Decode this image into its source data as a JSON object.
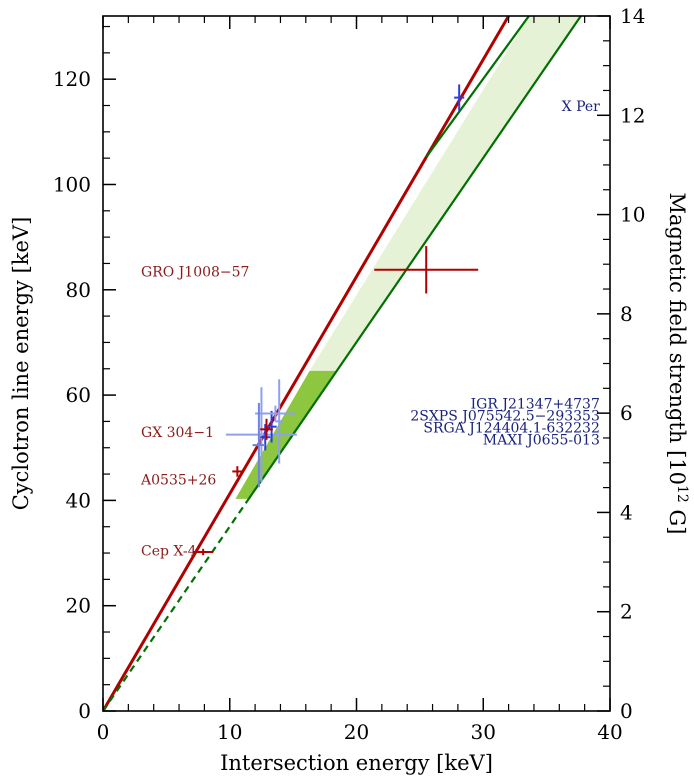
{
  "chart_data": {
    "type": "scatter",
    "xlabel": "Intersection energy [keV]",
    "ylabel": "Cyclotron line energy [keV]",
    "y2label_main": "Magnetic field strength [10",
    "y2label_sup": "12",
    "y2label_tail": " G]",
    "xlim": [
      0,
      40
    ],
    "ylim": [
      0,
      132
    ],
    "y2lim": [
      0,
      14
    ],
    "xticks": [
      "0",
      "10",
      "20",
      "30",
      "40"
    ],
    "yticks": [
      "0",
      "20",
      "40",
      "60",
      "80",
      "100",
      "120"
    ],
    "y2ticks": [
      "0",
      "2",
      "4",
      "6",
      "8",
      "10",
      "12",
      "14"
    ],
    "lines": [
      {
        "name": "",
        "color": "#b00000",
        "style": "solid",
        "points": [
          [
            0,
            0
          ],
          [
            32,
            132
          ]
        ]
      },
      {
        "name": "",
        "color": "#007000",
        "style": "solid",
        "points": [
          [
            11.5,
            40.3
          ],
          [
            37.7,
            132
          ]
        ]
      },
      {
        "name": "",
        "color": "#007000",
        "style": "solid",
        "points": [
          [
            25.5,
            105.2
          ],
          [
            33.6,
            132
          ]
        ]
      },
      {
        "name": "",
        "color": "#007000",
        "style": "dashed",
        "points": [
          [
            0,
            0
          ],
          [
            11.5,
            40.3
          ]
        ]
      }
    ],
    "regions": [
      {
        "color": "#e6f2d6",
        "polygon": [
          [
            16.3,
            64.6
          ],
          [
            18.5,
            64.6
          ],
          [
            37.7,
            132
          ],
          [
            33.6,
            132
          ]
        ]
      },
      {
        "color": "#8dc63f",
        "polygon": [
          [
            10.45,
            40.3
          ],
          [
            11.5,
            40.3
          ],
          [
            18.5,
            64.6
          ],
          [
            16.3,
            64.6
          ]
        ]
      }
    ],
    "points": [
      {
        "x": 28.1,
        "y": 116.5,
        "xerr": 0.4,
        "yerr": 2.5,
        "color": "#2a3fe0"
      },
      {
        "x": 25.5,
        "y": 83.8,
        "xerr": 4.1,
        "yerr": 4.5,
        "color": "#b00000"
      },
      {
        "x": 12.5,
        "y": 52.5,
        "xerr": 2.8,
        "yerr": 9.0,
        "color": "#8fa0f0"
      },
      {
        "x": 13.3,
        "y": 54.0,
        "xerr": 0.4,
        "yerr": 3.0,
        "color": "#2a3fe0"
      },
      {
        "x": 13.6,
        "y": 56.5,
        "xerr": 1.6,
        "yerr": 1.5,
        "color": "#8fa0f0"
      },
      {
        "x": 13.9,
        "y": 55.0,
        "xerr": 0.3,
        "yerr": 8.0,
        "color": "#8fa0f0"
      },
      {
        "x": 12.8,
        "y": 52.0,
        "xerr": 0.4,
        "yerr": 2.5,
        "color": "#2a3fe0"
      },
      {
        "x": 12.3,
        "y": 50.5,
        "xerr": 0.5,
        "yerr": 8.0,
        "color": "#6f82e0"
      },
      {
        "x": 12.9,
        "y": 53.5,
        "xerr": 0.5,
        "yerr": 2.0,
        "color": "#b00000"
      },
      {
        "x": 10.6,
        "y": 45.5,
        "xerr": 0.4,
        "yerr": 1.0,
        "color": "#b00000"
      },
      {
        "x": 7.9,
        "y": 30.2,
        "xerr": 0.8,
        "yerr": 0.6,
        "color": "#b00000"
      }
    ],
    "annotations": [
      {
        "text": "X Per",
        "color": "#1a237e",
        "anchor": "end",
        "x": 39.2,
        "y": 114.0
      },
      {
        "text": "GRO J1008−57",
        "color": "#8b1a1a",
        "anchor": "start",
        "x": 3.0,
        "y": 82.5
      },
      {
        "text": "GX 304−1",
        "color": "#8b1a1a",
        "anchor": "start",
        "x": 3.0,
        "y": 52.0
      },
      {
        "text": "A0535+26",
        "color": "#8b1a1a",
        "anchor": "start",
        "x": 3.0,
        "y": 43.0
      },
      {
        "text": "Cep X-4",
        "color": "#8b1a1a",
        "anchor": "start",
        "x": 3.0,
        "y": 29.5
      },
      {
        "text": "IGR J21347+4737",
        "color": "#1a237e",
        "anchor": "end",
        "x": 39.2,
        "y": 57.5
      },
      {
        "text": "2SXPS J075542.5−293353",
        "color": "#1a237e",
        "anchor": "end",
        "x": 39.2,
        "y": 55.2
      },
      {
        "text": "SRGA J124404.1-632232",
        "color": "#1a237e",
        "anchor": "end",
        "x": 39.2,
        "y": 52.9
      },
      {
        "text": "MAXI J0655-013",
        "color": "#1a237e",
        "anchor": "end",
        "x": 39.2,
        "y": 50.6
      }
    ]
  }
}
